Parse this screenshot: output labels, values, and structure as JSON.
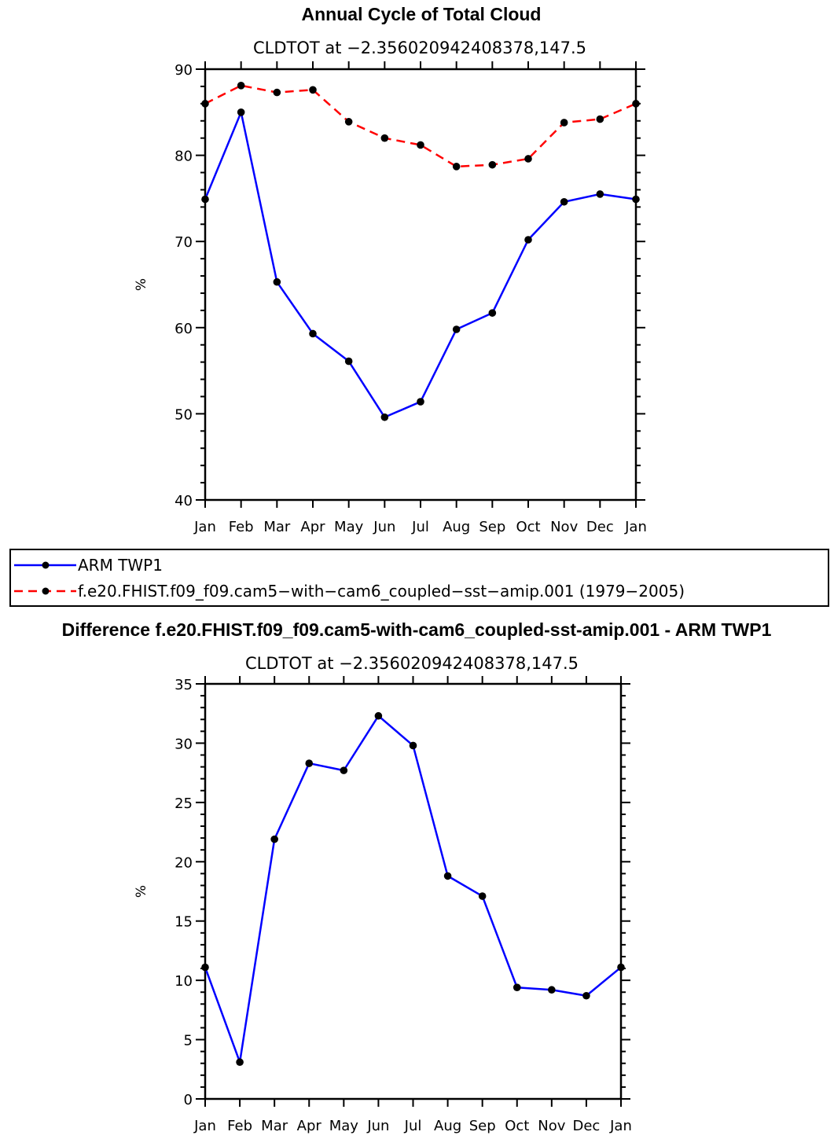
{
  "chart_data": [
    {
      "type": "line",
      "title": "Annual Cycle of Total Cloud",
      "subtitle": "CLDTOT at −2.356020942408378,147.5",
      "xlabel": "",
      "ylabel": "%",
      "ylim": [
        40,
        90
      ],
      "yticks": [
        40,
        50,
        60,
        70,
        80,
        90
      ],
      "categories": [
        "Jan",
        "Feb",
        "Mar",
        "Apr",
        "May",
        "Jun",
        "Jul",
        "Aug",
        "Sep",
        "Oct",
        "Nov",
        "Dec",
        "Jan"
      ],
      "series": [
        {
          "name": "ARM  TWP1",
          "color": "#0000ff",
          "dash": "solid",
          "values": [
            74.9,
            85.0,
            65.3,
            59.3,
            56.1,
            49.6,
            51.4,
            59.8,
            61.7,
            70.2,
            74.6,
            75.5,
            74.9
          ]
        },
        {
          "name": "f.e20.FHIST.f09_f09.cam5−with−cam6_coupled−sst−amip.001  (1979−2005)",
          "color": "#ff0000",
          "dash": "dashed",
          "values": [
            86.0,
            88.1,
            87.3,
            87.6,
            83.9,
            82.0,
            81.2,
            78.7,
            78.9,
            79.6,
            83.8,
            84.2,
            86.0
          ]
        }
      ]
    },
    {
      "type": "line",
      "title": "Difference f.e20.FHIST.f09_f09.cam5-with-cam6_coupled-sst-amip.001 - ARM TWP1",
      "subtitle": "CLDTOT at −2.356020942408378,147.5",
      "xlabel": "",
      "ylabel": "%",
      "ylim": [
        0,
        35
      ],
      "yticks": [
        0,
        5,
        10,
        15,
        20,
        25,
        30,
        35
      ],
      "categories": [
        "Jan",
        "Feb",
        "Mar",
        "Apr",
        "May",
        "Jun",
        "Jul",
        "Aug",
        "Sep",
        "Oct",
        "Nov",
        "Dec",
        "Jan"
      ],
      "series": [
        {
          "name": "Difference",
          "color": "#0000ff",
          "dash": "solid",
          "values": [
            11.1,
            3.1,
            21.9,
            28.3,
            27.7,
            32.3,
            29.8,
            18.8,
            17.1,
            9.4,
            9.2,
            8.7,
            11.1
          ]
        }
      ]
    }
  ]
}
